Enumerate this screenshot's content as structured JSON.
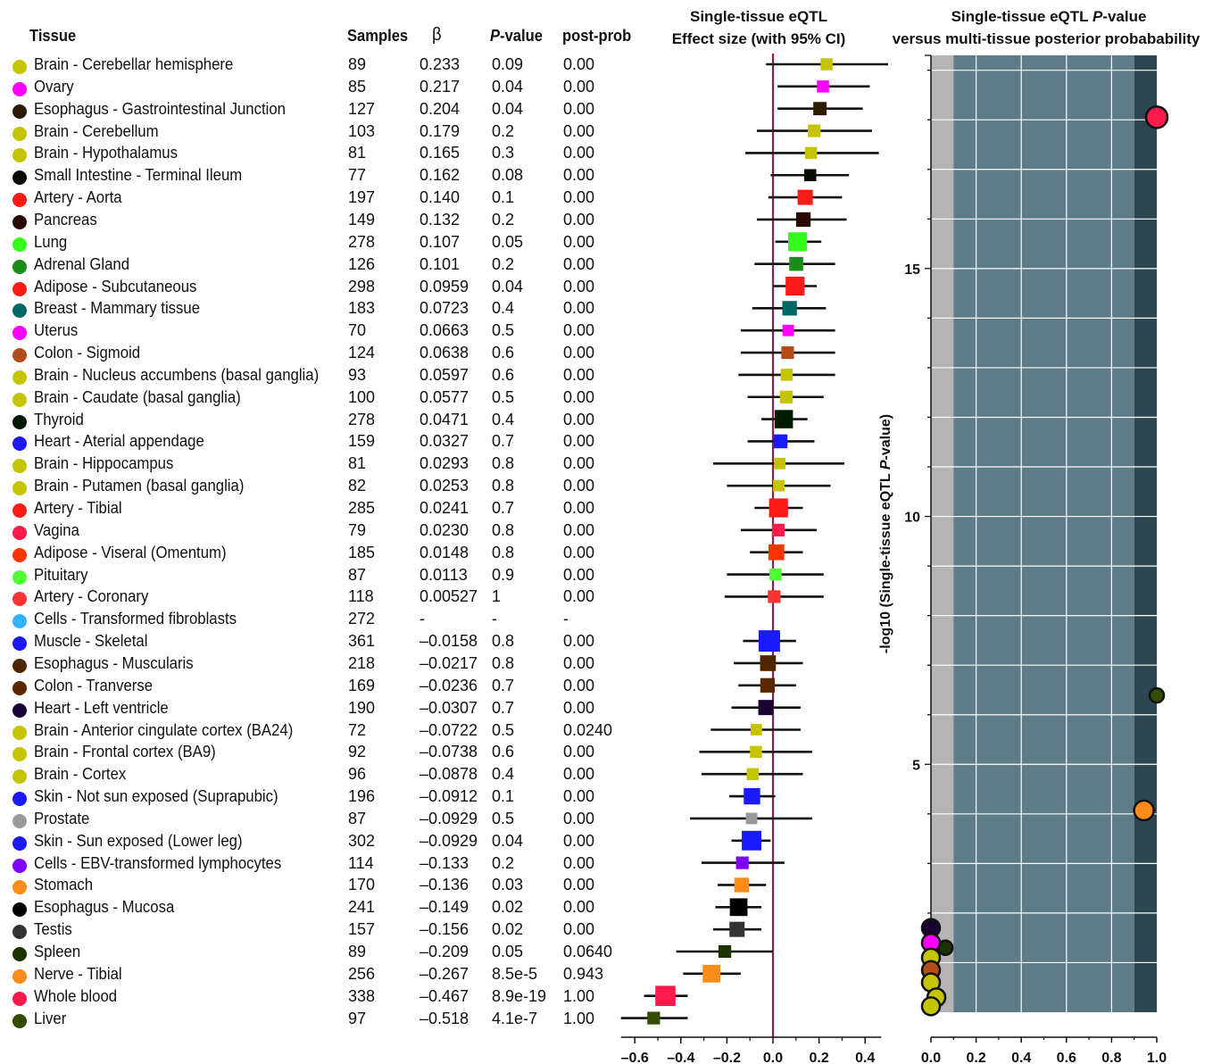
{
  "table": {
    "headers": {
      "tissue": "Tissue",
      "samples": "Samples",
      "beta": "β",
      "pvalue_italic": "P",
      "pvalue_rest": "-value",
      "postprob": "post-prob"
    },
    "rows": [
      {
        "tissue": "Brain - Cerebellar hemisphere",
        "samples": "89",
        "beta": "0.233",
        "p": "0.09",
        "pp": "0.00",
        "color": "#c4c400"
      },
      {
        "tissue": "Ovary",
        "samples": "85",
        "beta": "0.217",
        "p": "0.04",
        "pp": "0.00",
        "color": "#ff00ff"
      },
      {
        "tissue": "Esophagus - Gastrointestinal Junction",
        "samples": "127",
        "beta": "0.204",
        "p": "0.04",
        "pp": "0.00",
        "color": "#2e1a00"
      },
      {
        "tissue": "Brain - Cerebellum",
        "samples": "103",
        "beta": "0.179",
        "p": "0.2",
        "pp": "0.00",
        "color": "#c4c400"
      },
      {
        "tissue": "Brain - Hypothalamus",
        "samples": "81",
        "beta": "0.165",
        "p": "0.3",
        "pp": "0.00",
        "color": "#c4c400"
      },
      {
        "tissue": "Small Intestine - Terminal Ileum",
        "samples": "77",
        "beta": "0.162",
        "p": "0.08",
        "pp": "0.00",
        "color": "#0a0a00"
      },
      {
        "tissue": "Artery - Aorta",
        "samples": "197",
        "beta": "0.140",
        "p": "0.1",
        "pp": "0.00",
        "color": "#ff1a1a"
      },
      {
        "tissue": "Pancreas",
        "samples": "149",
        "beta": "0.132",
        "p": "0.2",
        "pp": "0.00",
        "color": "#2a0a00"
      },
      {
        "tissue": "Lung",
        "samples": "278",
        "beta": "0.107",
        "p": "0.05",
        "pp": "0.00",
        "color": "#33ff1a"
      },
      {
        "tissue": "Adrenal Gland",
        "samples": "126",
        "beta": "0.101",
        "p": "0.2",
        "pp": "0.00",
        "color": "#1a8c1a"
      },
      {
        "tissue": "Adipose - Subcutaneous",
        "samples": "298",
        "beta": "0.0959",
        "p": "0.04",
        "pp": "0.00",
        "color": "#ff1a1a"
      },
      {
        "tissue": "Breast - Mammary tissue",
        "samples": "183",
        "beta": "0.0723",
        "p": "0.4",
        "pp": "0.00",
        "color": "#006666"
      },
      {
        "tissue": "Uterus",
        "samples": "70",
        "beta": "0.0663",
        "p": "0.5",
        "pp": "0.00",
        "color": "#ff00ff"
      },
      {
        "tissue": "Colon - Sigmoid",
        "samples": "124",
        "beta": "0.0638",
        "p": "0.6",
        "pp": "0.00",
        "color": "#b34d1a"
      },
      {
        "tissue": "Brain - Nucleus accumbens (basal ganglia)",
        "samples": "93",
        "beta": "0.0597",
        "p": "0.6",
        "pp": "0.00",
        "color": "#c4c400"
      },
      {
        "tissue": "Brain - Caudate (basal ganglia)",
        "samples": "100",
        "beta": "0.0577",
        "p": "0.5",
        "pp": "0.00",
        "color": "#c4c400"
      },
      {
        "tissue": "Thyroid",
        "samples": "278",
        "beta": "0.0471",
        "p": "0.4",
        "pp": "0.00",
        "color": "#001a00"
      },
      {
        "tissue": "Heart - Aterial appendage",
        "samples": "159",
        "beta": "0.0327",
        "p": "0.7",
        "pp": "0.00",
        "color": "#1a1aff"
      },
      {
        "tissue": "Brain - Hippocampus",
        "samples": "81",
        "beta": "0.0293",
        "p": "0.8",
        "pp": "0.00",
        "color": "#c4c400"
      },
      {
        "tissue": "Brain - Putamen (basal ganglia)",
        "samples": "82",
        "beta": "0.0253",
        "p": "0.8",
        "pp": "0.00",
        "color": "#c4c400"
      },
      {
        "tissue": "Artery - Tibial",
        "samples": "285",
        "beta": "0.0241",
        "p": "0.7",
        "pp": "0.00",
        "color": "#ff1a1a"
      },
      {
        "tissue": "Vagina",
        "samples": "79",
        "beta": "0.0230",
        "p": "0.8",
        "pp": "0.00",
        "color": "#ff1a4d"
      },
      {
        "tissue": "Adipose - Viseral (Omentum)",
        "samples": "185",
        "beta": "0.0148",
        "p": "0.8",
        "pp": "0.00",
        "color": "#ff3300"
      },
      {
        "tissue": "Pituitary",
        "samples": "87",
        "beta": "0.0113",
        "p": "0.9",
        "pp": "0.00",
        "color": "#4dff33"
      },
      {
        "tissue": "Artery - Coronary",
        "samples": "118",
        "beta": "0.00527",
        "p": "1",
        "pp": "0.00",
        "color": "#ff3333"
      },
      {
        "tissue": "Cells - Transformed fibroblasts",
        "samples": "272",
        "beta": "-",
        "p": "-",
        "pp": "-",
        "color": "#33b3ff"
      },
      {
        "tissue": "Muscle - Skeletal",
        "samples": "361",
        "beta": "–0.0158",
        "p": "0.8",
        "pp": "0.00",
        "color": "#1a1aff"
      },
      {
        "tissue": "Esophagus - Muscularis",
        "samples": "218",
        "beta": "–0.0217",
        "p": "0.8",
        "pp": "0.00",
        "color": "#4d2600"
      },
      {
        "tissue": "Colon - Tranverse",
        "samples": "169",
        "beta": "–0.0236",
        "p": "0.7",
        "pp": "0.00",
        "color": "#5c2600"
      },
      {
        "tissue": "Heart - Left ventricle",
        "samples": "190",
        "beta": "–0.0307",
        "p": "0.7",
        "pp": "0.00",
        "color": "#1a0033"
      },
      {
        "tissue": "Brain - Anterior cingulate cortex (BA24)",
        "samples": "72",
        "beta": "–0.0722",
        "p": "0.5",
        "pp": "0.0240",
        "color": "#c4c400"
      },
      {
        "tissue": "Brain - Frontal cortex (BA9)",
        "samples": "92",
        "beta": "–0.0738",
        "p": "0.6",
        "pp": "0.00",
        "color": "#c4c400"
      },
      {
        "tissue": "Brain - Cortex",
        "samples": "96",
        "beta": "–0.0878",
        "p": "0.4",
        "pp": "0.00",
        "color": "#c4c400"
      },
      {
        "tissue": "Skin - Not sun exposed (Suprapubic)",
        "samples": "196",
        "beta": "–0.0912",
        "p": "0.1",
        "pp": "0.00",
        "color": "#1a1aff"
      },
      {
        "tissue": "Prostate",
        "samples": "87",
        "beta": "–0.0929",
        "p": "0.5",
        "pp": "0.00",
        "color": "#999999"
      },
      {
        "tissue": "Skin - Sun exposed (Lower leg)",
        "samples": "302",
        "beta": "–0.0929",
        "p": "0.04",
        "pp": "0.00",
        "color": "#1a1aff"
      },
      {
        "tissue": "Cells - EBV-transformed lymphocytes",
        "samples": "114",
        "beta": "–0.133",
        "p": "0.2",
        "pp": "0.00",
        "color": "#8000ff"
      },
      {
        "tissue": "Stomach",
        "samples": "170",
        "beta": "–0.136",
        "p": "0.03",
        "pp": "0.00",
        "color": "#ff8c1a"
      },
      {
        "tissue": "Esophagus - Mucosa",
        "samples": "241",
        "beta": "–0.149",
        "p": "0.02",
        "pp": "0.00",
        "color": "#000000"
      },
      {
        "tissue": "Testis",
        "samples": "157",
        "beta": "–0.156",
        "p": "0.02",
        "pp": "0.00",
        "color": "#333333"
      },
      {
        "tissue": "Spleen",
        "samples": "89",
        "beta": "–0.209",
        "p": "0.05",
        "pp": "0.0640",
        "color": "#1a3300"
      },
      {
        "tissue": "Nerve - Tibial",
        "samples": "256",
        "beta": "–0.267",
        "p": "8.5e-5",
        "pp": "0.943",
        "color": "#ff8c1a"
      },
      {
        "tissue": "Whole blood",
        "samples": "338",
        "beta": "–0.467",
        "p": "8.9e-19",
        "pp": "1.00",
        "color": "#ff1a4d"
      },
      {
        "tissue": "Liver",
        "samples": "97",
        "beta": "–0.518",
        "p": "4.1e-7",
        "pp": "1.00",
        "color": "#334d00"
      }
    ]
  },
  "chart_data": [
    {
      "type": "scatter",
      "chart": "forest",
      "title": "Single-tissue eQTL",
      "subtitle": "Effect size (with 95% CI)",
      "xlim": [
        -0.65,
        0.47
      ],
      "xticks": [
        "–0.6",
        "–0.4",
        "–0.2",
        "0.0",
        "0.2",
        "0.4"
      ],
      "xtick_values": [
        -0.6,
        -0.4,
        -0.2,
        0.0,
        0.2,
        0.4
      ],
      "reference_line": 0,
      "reference_color": "#9c1a4a",
      "points": [
        {
          "beta": 0.233,
          "lo": -0.03,
          "hi": 0.5,
          "weight": 0.25
        },
        {
          "beta": 0.217,
          "lo": 0.02,
          "hi": 0.42,
          "weight": 0.25
        },
        {
          "beta": 0.204,
          "lo": 0.02,
          "hi": 0.39,
          "weight": 0.35
        },
        {
          "beta": 0.179,
          "lo": -0.07,
          "hi": 0.43,
          "weight": 0.3
        },
        {
          "beta": 0.165,
          "lo": -0.12,
          "hi": 0.46,
          "weight": 0.25
        },
        {
          "beta": 0.162,
          "lo": -0.01,
          "hi": 0.33,
          "weight": 0.25
        },
        {
          "beta": 0.14,
          "lo": -0.02,
          "hi": 0.3,
          "weight": 0.5
        },
        {
          "beta": 0.132,
          "lo": -0.07,
          "hi": 0.32,
          "weight": 0.45
        },
        {
          "beta": 0.107,
          "lo": 0.01,
          "hi": 0.21,
          "weight": 0.8
        },
        {
          "beta": 0.101,
          "lo": -0.08,
          "hi": 0.27,
          "weight": 0.4
        },
        {
          "beta": 0.0959,
          "lo": 0.0,
          "hi": 0.19,
          "weight": 0.8
        },
        {
          "beta": 0.0723,
          "lo": -0.09,
          "hi": 0.23,
          "weight": 0.45
        },
        {
          "beta": 0.0663,
          "lo": -0.14,
          "hi": 0.27,
          "weight": 0.2
        },
        {
          "beta": 0.0638,
          "lo": -0.14,
          "hi": 0.27,
          "weight": 0.3
        },
        {
          "beta": 0.0597,
          "lo": -0.15,
          "hi": 0.27,
          "weight": 0.25
        },
        {
          "beta": 0.0577,
          "lo": -0.11,
          "hi": 0.22,
          "weight": 0.3
        },
        {
          "beta": 0.0471,
          "lo": -0.05,
          "hi": 0.15,
          "weight": 0.75
        },
        {
          "beta": 0.0327,
          "lo": -0.11,
          "hi": 0.18,
          "weight": 0.4
        },
        {
          "beta": 0.0293,
          "lo": -0.26,
          "hi": 0.31,
          "weight": 0.2
        },
        {
          "beta": 0.0253,
          "lo": -0.2,
          "hi": 0.25,
          "weight": 0.2
        },
        {
          "beta": 0.0241,
          "lo": -0.08,
          "hi": 0.13,
          "weight": 0.8
        },
        {
          "beta": 0.023,
          "lo": -0.14,
          "hi": 0.19,
          "weight": 0.3
        },
        {
          "beta": 0.0148,
          "lo": -0.1,
          "hi": 0.13,
          "weight": 0.55
        },
        {
          "beta": 0.0113,
          "lo": -0.2,
          "hi": 0.22,
          "weight": 0.25
        },
        {
          "beta": 0.00527,
          "lo": -0.21,
          "hi": 0.22,
          "weight": 0.3
        },
        {
          "beta": null
        },
        {
          "beta": -0.0158,
          "lo": -0.13,
          "hi": 0.1,
          "weight": 1.0
        },
        {
          "beta": -0.0217,
          "lo": -0.17,
          "hi": 0.13,
          "weight": 0.55
        },
        {
          "beta": -0.0236,
          "lo": -0.15,
          "hi": 0.1,
          "weight": 0.45
        },
        {
          "beta": -0.0307,
          "lo": -0.18,
          "hi": 0.12,
          "weight": 0.5
        },
        {
          "beta": -0.0722,
          "lo": -0.27,
          "hi": 0.12,
          "weight": 0.2
        },
        {
          "beta": -0.0738,
          "lo": -0.32,
          "hi": 0.17,
          "weight": 0.25
        },
        {
          "beta": -0.0878,
          "lo": -0.31,
          "hi": 0.13,
          "weight": 0.25
        },
        {
          "beta": -0.0912,
          "lo": -0.19,
          "hi": 0.01,
          "weight": 0.6
        },
        {
          "beta": -0.0929,
          "lo": -0.36,
          "hi": 0.17,
          "weight": 0.2
        },
        {
          "beta": -0.0929,
          "lo": -0.18,
          "hi": -0.01,
          "weight": 0.85
        },
        {
          "beta": -0.133,
          "lo": -0.31,
          "hi": 0.05,
          "weight": 0.3
        },
        {
          "beta": -0.136,
          "lo": -0.24,
          "hi": -0.03,
          "weight": 0.45
        },
        {
          "beta": -0.149,
          "lo": -0.25,
          "hi": -0.05,
          "weight": 0.7
        },
        {
          "beta": -0.156,
          "lo": -0.26,
          "hi": -0.05,
          "weight": 0.5
        },
        {
          "beta": -0.209,
          "lo": -0.42,
          "hi": 0.0,
          "weight": 0.3
        },
        {
          "beta": -0.267,
          "lo": -0.39,
          "hi": -0.14,
          "weight": 0.7
        },
        {
          "beta": -0.467,
          "lo": -0.56,
          "hi": -0.37,
          "weight": 0.9
        },
        {
          "beta": -0.518,
          "lo": -0.66,
          "hi": -0.37,
          "weight": 0.3
        }
      ]
    },
    {
      "type": "scatter",
      "title": "Single-tissue eQTL",
      "title_italic": "P",
      "title_rest": "-value",
      "subtitle": "versus multi-tissue posterior probabability",
      "xlabel": "",
      "ylabel_prefix": "-log10 (Single-tissue eQTL ",
      "ylabel_italic": "P",
      "ylabel_suffix": "-value)",
      "xlim": [
        0,
        1
      ],
      "ylim": [
        0,
        19.3
      ],
      "xticks": [
        "0.0",
        "0.2",
        "0.4",
        "0.6",
        "0.8",
        "1.0"
      ],
      "xtick_values": [
        0,
        0.2,
        0.4,
        0.6,
        0.8,
        1.0
      ],
      "yticks": [
        "5",
        "10",
        "15"
      ],
      "ytick_values": [
        5,
        10,
        15
      ],
      "regions": [
        {
          "from": 0,
          "to": 0.1,
          "color": "#b4b4b4"
        },
        {
          "from": 0.1,
          "to": 0.9,
          "color": "#5d7c87"
        },
        {
          "from": 0.9,
          "to": 1.0,
          "color": "#2d4752"
        }
      ],
      "grid": true,
      "points": [
        {
          "x": 1.0,
          "y": 18.05,
          "color": "#ff1a4d",
          "r": 12
        },
        {
          "x": 1.0,
          "y": 6.39,
          "color": "#334d00",
          "r": 8
        },
        {
          "x": 0.943,
          "y": 4.07,
          "color": "#ff8c1a",
          "r": 11
        },
        {
          "x": 0.064,
          "y": 1.3,
          "color": "#1a3300",
          "r": 8
        },
        {
          "x": 0.0,
          "y": 1.7,
          "color": "#1a0033",
          "r": 10
        },
        {
          "x": 0.0,
          "y": 1.4,
          "color": "#ff00ff",
          "r": 10
        },
        {
          "x": 0.0,
          "y": 1.1,
          "color": "#c4c400",
          "r": 10
        },
        {
          "x": 0.0,
          "y": 0.85,
          "color": "#b34d1a",
          "r": 10
        },
        {
          "x": 0.0,
          "y": 0.6,
          "color": "#c4c400",
          "r": 10
        },
        {
          "x": 0.024,
          "y": 0.3,
          "color": "#c4c400",
          "r": 10
        },
        {
          "x": 0.0,
          "y": 0.12,
          "color": "#c4c400",
          "r": 10
        }
      ]
    }
  ]
}
